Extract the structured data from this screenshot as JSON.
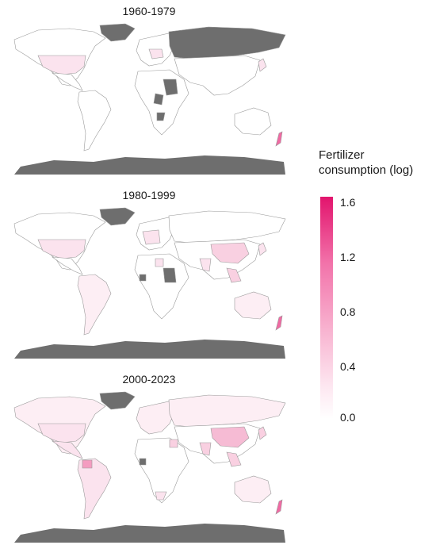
{
  "panels": [
    {
      "title": "1960-1979"
    },
    {
      "title": "1980-1999"
    },
    {
      "title": "2000-2023"
    }
  ],
  "legend": {
    "title_line1": "Fertilizer",
    "title_line2": "consumption (log)",
    "ticks": [
      "1.6",
      "1.2",
      "0.8",
      "0.4",
      "0.0"
    ],
    "color_max": "#e2146d",
    "color_min": "#ffffff",
    "no_data_color": "#6e6e6e"
  }
}
